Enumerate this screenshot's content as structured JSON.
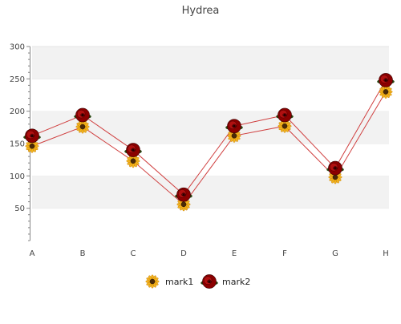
{
  "chart_data": {
    "type": "line",
    "title": "Hydrea",
    "xlabel": "",
    "ylabel": "",
    "categories": [
      "A",
      "B",
      "C",
      "D",
      "E",
      "F",
      "G",
      "H"
    ],
    "ylim": [
      0,
      300
    ],
    "yticks": [
      50,
      100,
      150,
      200,
      250,
      300
    ],
    "grid": "horizontal alternating bands",
    "legend_position": "bottom",
    "series": [
      {
        "name": "mark1",
        "marker": "sunflower-icon",
        "color": "#f0a818",
        "values": [
          146,
          176,
          123,
          56,
          162,
          177,
          98,
          230
        ]
      },
      {
        "name": "mark2",
        "marker": "rose-icon",
        "color": "#8b0000",
        "values": [
          162,
          194,
          140,
          71,
          177,
          194,
          112,
          248
        ]
      }
    ],
    "line_color": "#d04040",
    "band_colors": [
      "#f2f2f2",
      "#ffffff"
    ]
  }
}
